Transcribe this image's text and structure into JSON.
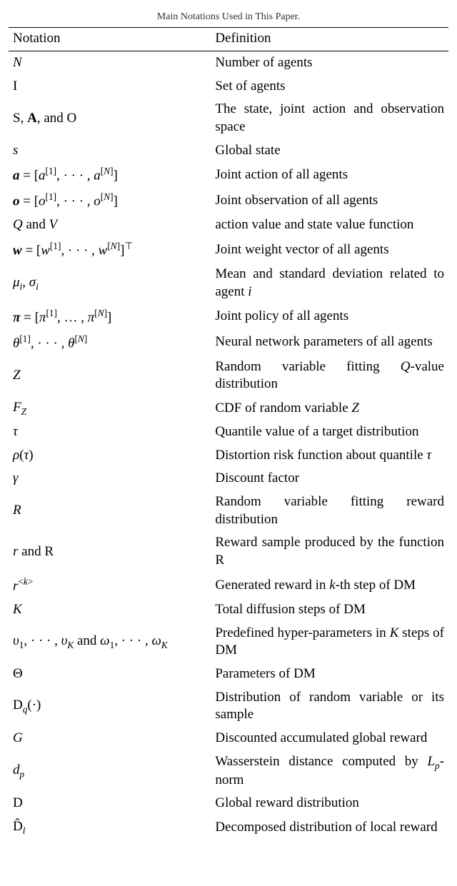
{
  "title": "Main Notations Used in This Paper.",
  "headers": {
    "notation": "Notation",
    "definition": "Definition"
  },
  "rows": [
    {
      "n": "<span>N</span>",
      "d": "Number of agents"
    },
    {
      "n": "<span class='cal'>I</span>",
      "d": "Set of agents"
    },
    {
      "n": "<span class='cal'>S</span><span class='rm'>, </span><span class='cal bold'>A</span><span class='rm'>, and </span><span class='cal'>O</span>",
      "d": "The state, joint action and observation space"
    },
    {
      "n": "<span>s</span>",
      "d": "Global state"
    },
    {
      "n": "<span class='bold'>a</span> <span class='rm'>= [</span>a<sup><span class='rm'>[1]</span></sup><span class='rm'>, · · · , </span>a<sup><span class='rm'>[</span>N<span class='rm'>]</span></sup><span class='rm'>]</span>",
      "d": "Joint action of all agents"
    },
    {
      "n": "<span class='bold'>o</span> <span class='rm'>= [</span>o<sup><span class='rm'>[1]</span></sup><span class='rm'>, · · · , </span>o<sup><span class='rm'>[</span>N<span class='rm'>]</span></sup><span class='rm'>]</span>",
      "d": "Joint observation of all agents"
    },
    {
      "n": "<span>Q</span><span class='rm'> and </span><span>V</span>",
      "d": "action value and state value function"
    },
    {
      "n": "<span class='bold'>w</span> <span class='rm'>= [</span>w<sup><span class='rm'>[1]</span></sup><span class='rm'>, · · · , </span>w<sup><span class='rm'>[</span>N<span class='rm'>]</span></sup><span class='rm'>]</span><sup><span class='rm'>⊤</span></sup>",
      "d": "Joint weight vector of all agents"
    },
    {
      "n": "<span>μ<sub>i</sub></span><span class='rm'>, </span><span>σ<sub>i</sub></span>",
      "d": "Mean and standard deviation related to agent <i>i</i>"
    },
    {
      "n": "<span class='bold'>π</span> <span class='rm'>= [</span>π<sup><span class='rm'>[1]</span></sup><span class='rm'>, … , </span>π<sup><span class='rm'>[</span>N<span class='rm'>]</span></sup><span class='rm'>]</span>",
      "d": "Joint policy of all agents"
    },
    {
      "n": "<span>θ</span><sup><span class='rm'>[1]</span></sup><span class='rm'>, · · · , </span><span>θ</span><sup><span class='rm'>[</span>N<span class='rm'>]</span></sup>",
      "d": "Neural network parameters of all agents"
    },
    {
      "n": "<span>Z</span>",
      "d": "Random variable fitting <i>Q</i>-value distribution"
    },
    {
      "n": "<span>F<sub>Z</sub></span>",
      "d": "CDF of random variable <i>Z</i>"
    },
    {
      "n": "<span>τ</span>",
      "d": "Quantile value of a target distribution"
    },
    {
      "n": "<span>ρ</span><span class='rm'>(</span><span>τ</span><span class='rm'>)</span>",
      "d": "Distortion risk function about quantile <i>τ</i>"
    },
    {
      "n": "<span>γ</span>",
      "d": "Discount factor"
    },
    {
      "n": "<span>R</span>",
      "d": "Random variable fitting reward distribution"
    },
    {
      "n": "<span>r</span><span class='rm'> and </span><span class='cal'>R</span>",
      "d": "Reward sample produced by the function <span class='cal'>R</span>"
    },
    {
      "n": "<span>r</span><sup><span class='rm'>&lt;</span>k<span class='rm'>&gt;</span></sup>",
      "d": "Generated reward in <i>k</i>-th step of DM"
    },
    {
      "n": "<span>K</span>",
      "d": "Total diffusion steps of DM"
    },
    {
      "n": "<span>υ</span><sub><span class='rm'>1</span></sub><span class='rm'>, · · · , </span><span>υ</span><sub>K</sub><span class='rm'> and </span><span>ω</span><sub><span class='rm'>1</span></sub><span class='rm'>, · · · , </span><span>ω</span><sub>K</sub>",
      "d": "Predefined hyper-parameters in <i>K</i> steps of DM"
    },
    {
      "n": "<span class='rm'>Θ</span>",
      "d": "Parameters of DM"
    },
    {
      "n": "<span class='cal'>D</span><sub>q</sub><span class='rm'>(·)</span>",
      "d": "Distribution of random variable or its sample"
    },
    {
      "n": "<span>G</span>",
      "d": "Discounted accumulated global reward"
    },
    {
      "n": "<span>d<sub>p</sub></span>",
      "d": "Wasserstein distance computed by <i>L<sub>p</sub></i>-norm"
    },
    {
      "n": "<span class='cal'>D</span>",
      "d": "Global reward distribution"
    },
    {
      "n": "<span class='cal'>D̂</span><sub>l</sub>",
      "d": "Decomposed distribution of local reward"
    }
  ]
}
